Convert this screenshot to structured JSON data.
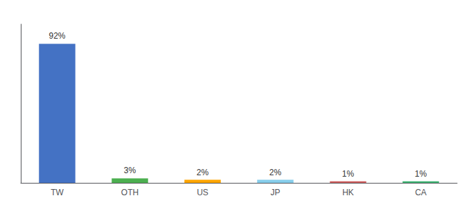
{
  "chart_data": {
    "type": "bar",
    "categories": [
      "TW",
      "OTH",
      "US",
      "JP",
      "HK",
      "CA"
    ],
    "values": [
      92,
      3,
      2,
      2,
      1,
      1
    ],
    "value_labels": [
      "92%",
      "3%",
      "2%",
      "2%",
      "1%",
      "1%"
    ],
    "colors": [
      "#4472C4",
      "#4CAF50",
      "#FFA500",
      "#87CEEB",
      "#CD5C5C",
      "#3CB371"
    ],
    "ylim": [
      0,
      105
    ],
    "grid": false,
    "data_labels": true,
    "tick_labels": "x"
  }
}
